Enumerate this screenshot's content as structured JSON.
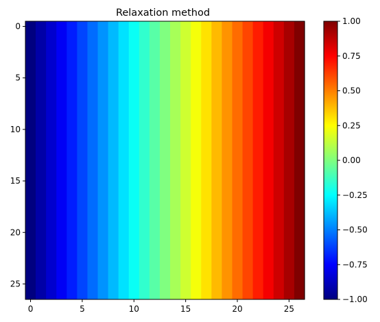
{
  "chart_data": {
    "type": "heatmap",
    "title": "Relaxation method",
    "xlabel": "",
    "ylabel": "",
    "grid": false,
    "colormap": "jet",
    "rows": 27,
    "cols": 27,
    "value_range": [
      -1.0,
      1.0
    ],
    "value_description": "each column constant; value increases linearly left to right",
    "column_values": [
      -1.0,
      -0.9231,
      -0.8462,
      -0.7692,
      -0.6923,
      -0.6154,
      -0.5385,
      -0.4615,
      -0.3846,
      -0.3077,
      -0.2308,
      -0.1538,
      -0.0769,
      0.0,
      0.0769,
      0.1538,
      0.2308,
      0.3077,
      0.3846,
      0.4615,
      0.5385,
      0.6154,
      0.6923,
      0.7692,
      0.8462,
      0.9231,
      1.0
    ],
    "x_ticks": [
      0,
      5,
      10,
      15,
      20,
      25
    ],
    "x_tick_labels": [
      "0",
      "5",
      "10",
      "15",
      "20",
      "25"
    ],
    "y_ticks": [
      0,
      5,
      10,
      15,
      20,
      25
    ],
    "y_tick_labels": [
      "0",
      "5",
      "10",
      "15",
      "20",
      "25"
    ],
    "xlim": [
      -0.5,
      26.5
    ],
    "ylim": [
      26.5,
      -0.5
    ],
    "colorbar": {
      "ticks": [
        -1.0,
        -0.75,
        -0.5,
        -0.25,
        0.0,
        0.25,
        0.5,
        0.75,
        1.0
      ],
      "tick_labels": [
        "−1.00",
        "−0.75",
        "−0.50",
        "−0.25",
        "0.00",
        "0.25",
        "0.50",
        "0.75",
        "1.00"
      ]
    }
  }
}
